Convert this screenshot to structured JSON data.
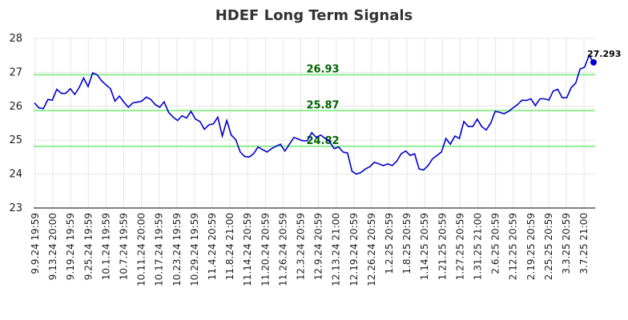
{
  "chart_data": {
    "type": "line",
    "title": "HDEF Long Term Signals",
    "xlabel": "",
    "ylabel": "",
    "ylim": [
      23,
      28
    ],
    "yticks": [
      23,
      24,
      25,
      26,
      27,
      28
    ],
    "grid": true,
    "x_tick_labels": [
      "9.9.24 19:59",
      "9.13.24 20:00",
      "9.19.24 19:59",
      "9.25.24 19:59",
      "10.1.24 19:59",
      "10.7.24 19:59",
      "10.11.24 20:00",
      "10.17.24 19:59",
      "10.23.24 19:59",
      "10.29.24 19:59",
      "11.4.24 20:59",
      "11.8.24 21:00",
      "11.14.24 20:59",
      "11.20.24 20:59",
      "11.26.24 20:59",
      "12.3.24 20:59",
      "12.9.24 20:59",
      "12.13.24 21:00",
      "12.19.24 20:59",
      "12.26.24 20:59",
      "1.2.25 20:59",
      "1.8.25 20:59",
      "1.14.25 20:59",
      "1.21.25 20:59",
      "1.27.25 20:59",
      "1.31.25 21:00",
      "2.6.25 20:59",
      "2.12.25 20:59",
      "2.19.25 20:59",
      "2.25.25 20:59",
      "3.3.25 20:59",
      "3.7.25 21:00"
    ],
    "levels": [
      {
        "value": 26.93,
        "label": "26.93"
      },
      {
        "value": 25.87,
        "label": "25.87"
      },
      {
        "value": 24.82,
        "label": "24.82"
      }
    ],
    "last_point": {
      "value": 27.293,
      "label": "27.293"
    },
    "series": [
      {
        "color": "#0000cc",
        "values": [
          26.1,
          25.95,
          25.93,
          26.2,
          26.18,
          26.5,
          26.38,
          26.38,
          26.52,
          26.35,
          26.55,
          26.83,
          26.58,
          26.98,
          26.93,
          26.75,
          26.63,
          26.52,
          26.15,
          26.3,
          26.12,
          25.97,
          26.1,
          26.12,
          26.15,
          26.27,
          26.2,
          26.05,
          25.97,
          26.13,
          25.82,
          25.68,
          25.58,
          25.72,
          25.65,
          25.85,
          25.62,
          25.55,
          25.32,
          25.45,
          25.48,
          25.68,
          25.12,
          25.58,
          25.15,
          25.02,
          24.65,
          24.52,
          24.5,
          24.6,
          24.8,
          24.72,
          24.65,
          24.75,
          24.82,
          24.88,
          24.68,
          24.88,
          25.08,
          25.03,
          24.98,
          24.98,
          25.22,
          25.08,
          25.15,
          25.05,
          24.95,
          24.75,
          24.8,
          24.65,
          24.62,
          24.08,
          24.0,
          24.05,
          24.15,
          24.22,
          24.35,
          24.3,
          24.25,
          24.3,
          24.25,
          24.38,
          24.6,
          24.68,
          24.55,
          24.6,
          24.15,
          24.12,
          24.25,
          24.45,
          24.55,
          24.65,
          25.05,
          24.88,
          25.12,
          25.05,
          25.55,
          25.4,
          25.4,
          25.62,
          25.4,
          25.3,
          25.5,
          25.85,
          25.82,
          25.78,
          25.85,
          25.95,
          26.05,
          26.18,
          26.17,
          26.22,
          26.02,
          26.22,
          26.22,
          26.18,
          26.45,
          26.5,
          26.25,
          26.25,
          26.55,
          26.68,
          27.1,
          27.15,
          27.5,
          27.293
        ]
      }
    ]
  }
}
